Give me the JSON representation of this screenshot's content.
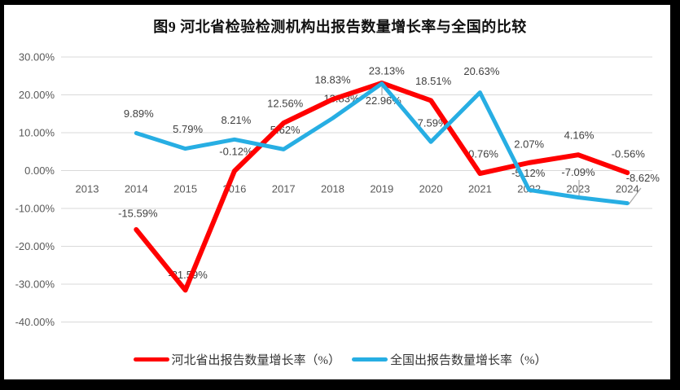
{
  "title": "图9 河北省检验检测机构出报告数量增长率与全国的比较",
  "chart_data": {
    "type": "line",
    "categories": [
      "2013",
      "2014",
      "2015",
      "2016",
      "2017",
      "2018",
      "2019",
      "2020",
      "2021",
      "2022",
      "2023",
      "2024"
    ],
    "series": [
      {
        "name": "河北省出报告数量增长率（%）",
        "color": "#FF0000",
        "values": [
          null,
          -15.59,
          -31.59,
          -0.12,
          12.56,
          18.83,
          23.13,
          18.51,
          -0.76,
          2.07,
          4.16,
          -0.56
        ],
        "labels": [
          null,
          "-15.59%",
          "-31.59%",
          "-0.12%",
          "12.56%",
          "18.83%",
          "23.13%",
          "18.51%",
          "-0.76%",
          "2.07%",
          "4.16%",
          "-0.56%"
        ]
      },
      {
        "name": "全国出报告数量增长率（%）",
        "color": "#27AEE3",
        "values": [
          null,
          9.89,
          5.79,
          8.21,
          5.62,
          13.83,
          22.96,
          7.59,
          20.63,
          -5.12,
          -7.09,
          -8.62
        ],
        "labels": [
          null,
          "9.89%",
          "5.79%",
          "8.21%",
          "5.62%",
          "13.83%",
          "22.96%",
          "7.59%",
          "20.63%",
          "-5.12%",
          "-7.09%",
          "-8.62%"
        ]
      }
    ],
    "y_axis": {
      "min": -40,
      "max": 30,
      "step": 10,
      "tick_labels": [
        "30.00%",
        "20.00%",
        "10.00%",
        "0.00%",
        "-10.00%",
        "-20.00%",
        "-30.00%",
        "-40.00%"
      ]
    },
    "grid": true,
    "legend_position": "bottom",
    "colors": {
      "gridline": "#D9D9D9",
      "axis_text": "#595959",
      "data_label_text": "#404040",
      "leader_line": "#A6A6A6",
      "frame": "#000000",
      "background": "#FFFFFF"
    }
  }
}
